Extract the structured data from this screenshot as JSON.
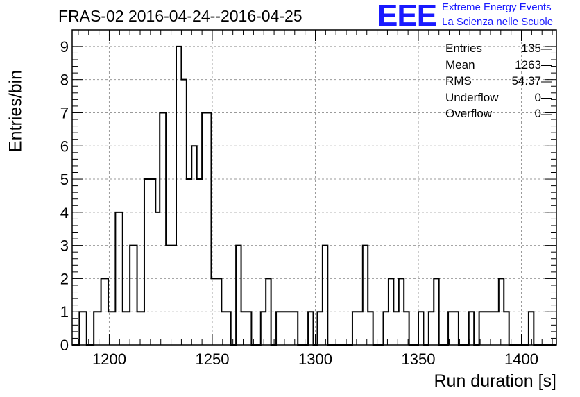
{
  "header": {
    "title": "FRAS-02 2016-04-24--2016-04-25",
    "logo_text": "EEE",
    "logo_line1": "Extreme Energy Events",
    "logo_line2": "La Scienza nelle Scuole"
  },
  "stats": [
    {
      "label": "Entries",
      "value": "135"
    },
    {
      "label": "Mean",
      "value": "1263"
    },
    {
      "label": "RMS",
      "value": "54.37"
    },
    {
      "label": "Underflow",
      "value": "0"
    },
    {
      "label": "Overflow",
      "value": "0"
    }
  ],
  "chart_data": {
    "type": "bar",
    "style": "step-histogram",
    "xlabel": "Run duration [s]",
    "ylabel": "Entries/bin",
    "xlim": [
      1182,
      1417
    ],
    "ylim": [
      0,
      9.5
    ],
    "bin_width": 3.5,
    "x_ticks": [
      1200,
      1250,
      1300,
      1350,
      1400
    ],
    "y_ticks": [
      0,
      1,
      2,
      3,
      4,
      5,
      6,
      7,
      8,
      9
    ],
    "grid": true,
    "line_color": "#000000",
    "bins": [
      {
        "x": 1182.0,
        "y": 0
      },
      {
        "x": 1185.5,
        "y": 1
      },
      {
        "x": 1189.0,
        "y": 0
      },
      {
        "x": 1192.5,
        "y": 1
      },
      {
        "x": 1196.0,
        "y": 2
      },
      {
        "x": 1199.5,
        "y": 1
      },
      {
        "x": 1203.0,
        "y": 4
      },
      {
        "x": 1206.5,
        "y": 1
      },
      {
        "x": 1210.0,
        "y": 3
      },
      {
        "x": 1213.5,
        "y": 1
      },
      {
        "x": 1217.0,
        "y": 5
      },
      {
        "x": 1222.5,
        "y": 4
      },
      {
        "x": 1224.5,
        "y": 7
      },
      {
        "x": 1227.5,
        "y": 3
      },
      {
        "x": 1232.5,
        "y": 9
      },
      {
        "x": 1235.0,
        "y": 8
      },
      {
        "x": 1237.5,
        "y": 5
      },
      {
        "x": 1240.0,
        "y": 6
      },
      {
        "x": 1242.5,
        "y": 5
      },
      {
        "x": 1245.0,
        "y": 7
      },
      {
        "x": 1249.5,
        "y": 2
      },
      {
        "x": 1254.5,
        "y": 1
      },
      {
        "x": 1259.0,
        "y": 0
      },
      {
        "x": 1261.5,
        "y": 3
      },
      {
        "x": 1264.0,
        "y": 1
      },
      {
        "x": 1269.0,
        "y": 0
      },
      {
        "x": 1273.5,
        "y": 1
      },
      {
        "x": 1276.0,
        "y": 2
      },
      {
        "x": 1278.5,
        "y": 0
      },
      {
        "x": 1281.0,
        "y": 1
      },
      {
        "x": 1291.5,
        "y": 0
      },
      {
        "x": 1296.5,
        "y": 1
      },
      {
        "x": 1299.0,
        "y": 0
      },
      {
        "x": 1301.0,
        "y": 1
      },
      {
        "x": 1303.5,
        "y": 3
      },
      {
        "x": 1306.0,
        "y": 0
      },
      {
        "x": 1318.0,
        "y": 1
      },
      {
        "x": 1323.0,
        "y": 3
      },
      {
        "x": 1325.5,
        "y": 1
      },
      {
        "x": 1328.0,
        "y": 0
      },
      {
        "x": 1333.0,
        "y": 1
      },
      {
        "x": 1335.5,
        "y": 2
      },
      {
        "x": 1338.0,
        "y": 1
      },
      {
        "x": 1340.5,
        "y": 2
      },
      {
        "x": 1343.0,
        "y": 1
      },
      {
        "x": 1345.5,
        "y": 0
      },
      {
        "x": 1350.0,
        "y": 1
      },
      {
        "x": 1352.5,
        "y": 0
      },
      {
        "x": 1355.0,
        "y": 1
      },
      {
        "x": 1357.5,
        "y": 2
      },
      {
        "x": 1360.0,
        "y": 0
      },
      {
        "x": 1364.5,
        "y": 1
      },
      {
        "x": 1369.5,
        "y": 0
      },
      {
        "x": 1374.5,
        "y": 1
      },
      {
        "x": 1377.0,
        "y": 0
      },
      {
        "x": 1379.5,
        "y": 1
      },
      {
        "x": 1389.0,
        "y": 2
      },
      {
        "x": 1391.5,
        "y": 1
      },
      {
        "x": 1394.0,
        "y": 0
      },
      {
        "x": 1403.5,
        "y": 1
      },
      {
        "x": 1406.0,
        "y": 0
      }
    ],
    "x_end": 1417
  }
}
